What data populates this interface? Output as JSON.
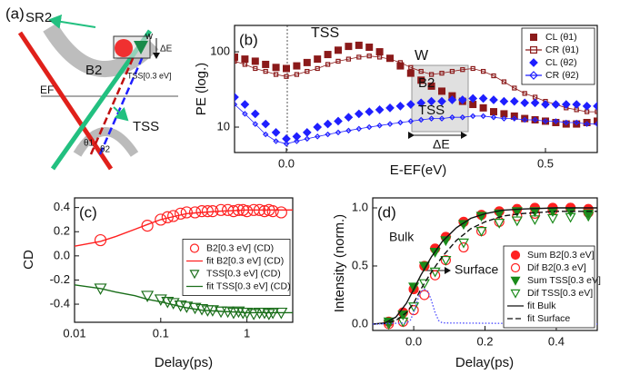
{
  "diagram": {
    "panel": "(a)",
    "labels": [
      "SR2",
      "w",
      "ΔE",
      "B2",
      "TSS[0.3 eV]",
      "EF",
      "TSS",
      "θ1",
      "θ2"
    ]
  },
  "chart_data": [
    {
      "type": "line",
      "panel": "(b)",
      "xlabel": "E-EF(eV)",
      "ylabel": "PE (log.)",
      "xlim": [
        -0.1,
        0.6
      ],
      "ylim": [
        4.6,
        224
      ],
      "ylog": true,
      "xticks": [
        {
          "value": 0,
          "label": "0.0"
        },
        {
          "value": 0.5,
          "label": "0.5"
        }
      ],
      "yticks": [
        10,
        100
      ],
      "legend": "top-right",
      "annotations": [
        "TSS",
        "W",
        "B2",
        "TSS",
        "ΔE"
      ],
      "x": [
        -0.1,
        -0.08,
        -0.06,
        -0.04,
        -0.02,
        0,
        0.02,
        0.04,
        0.06,
        0.08,
        0.1,
        0.12,
        0.14,
        0.16,
        0.18,
        0.2,
        0.22,
        0.24,
        0.26,
        0.28,
        0.3,
        0.32,
        0.34,
        0.36,
        0.38,
        0.4,
        0.42,
        0.44,
        0.46,
        0.48,
        0.5,
        0.52,
        0.54,
        0.56,
        0.58,
        0.6
      ],
      "series": [
        {
          "name": "CL (θ1)",
          "color": "#8b1a1a",
          "marker": "square",
          "filled": true,
          "line": false,
          "values": [
            85,
            80,
            75,
            68,
            62,
            60,
            65,
            72,
            80,
            92,
            105,
            118,
            122,
            115,
            100,
            82,
            65,
            52,
            42,
            35,
            30,
            26,
            22,
            20,
            18,
            16,
            15,
            14,
            13,
            12.5,
            12,
            11.5,
            11,
            11,
            11.5,
            12
          ]
        },
        {
          "name": "CR (θ1)",
          "color": "#8b1a1a",
          "marker": "square",
          "filled": false,
          "line": true,
          "values": [
            75,
            68,
            60,
            55,
            50,
            47,
            50,
            55,
            60,
            68,
            75,
            80,
            85,
            88,
            85,
            80,
            72,
            62,
            55,
            50,
            52,
            55,
            58,
            60,
            55,
            48,
            40,
            33,
            28,
            25,
            22,
            20,
            18,
            17,
            16,
            16
          ]
        },
        {
          "name": "CL (θ2)",
          "color": "#1f1fff",
          "marker": "diamond",
          "filled": true,
          "line": false,
          "values": [
            25,
            20,
            15,
            11,
            8.5,
            7,
            7.5,
            8.5,
            10,
            11,
            12,
            13.5,
            15,
            16,
            17,
            18,
            19,
            20,
            21,
            22,
            22,
            23,
            23,
            24,
            24,
            23,
            22,
            22,
            21,
            21,
            20,
            20,
            20,
            20,
            19,
            19
          ]
        },
        {
          "name": "CR (θ2)",
          "color": "#1f1fff",
          "marker": "diamond",
          "filled": false,
          "line": true,
          "values": [
            20,
            15,
            11,
            8,
            6.5,
            6,
            6.5,
            7,
            7.5,
            8,
            8.5,
            9,
            9.5,
            10,
            10.5,
            11,
            11.5,
            12,
            12.5,
            13,
            13,
            13.5,
            13.5,
            14,
            14,
            13.5,
            13,
            13,
            12.5,
            12.5,
            12,
            12,
            11.5,
            11.5,
            11,
            11
          ]
        }
      ]
    },
    {
      "type": "line",
      "panel": "(c)",
      "xlabel": "Delay(ps)",
      "ylabel": "CD",
      "xlim": [
        0.01,
        3.4
      ],
      "ylim": [
        -0.55,
        0.48
      ],
      "xlog": true,
      "xticks": [
        0.01,
        0.1,
        1
      ],
      "yticks": [
        -0.4,
        -0.2,
        {
          "value": 0,
          "label": "0.0"
        },
        0.2,
        0.4
      ],
      "legend": "center-right",
      "series": [
        {
          "name": "B2[0.3 eV] (CD)",
          "color": "#ff2020",
          "marker": "circle",
          "filled": false,
          "line": false,
          "x": [
            0.02,
            0.07,
            0.1,
            0.12,
            0.14,
            0.17,
            0.2,
            0.25,
            0.3,
            0.35,
            0.4,
            0.5,
            0.6,
            0.7,
            0.8,
            0.9,
            1,
            1.2,
            1.4,
            1.6,
            1.8,
            2,
            2.5
          ],
          "values": [
            0.13,
            0.25,
            0.3,
            0.32,
            0.33,
            0.35,
            0.36,
            0.36,
            0.37,
            0.37,
            0.37,
            0.38,
            0.38,
            0.37,
            0.38,
            0.38,
            0.37,
            0.38,
            0.38,
            0.37,
            0.38,
            0.37,
            0.36
          ]
        },
        {
          "name": "fit B2[0.3 eV] (CD)",
          "color": "#ff2020",
          "line": true,
          "x": [
            0.01,
            0.02,
            0.03,
            0.05,
            0.07,
            0.1,
            0.15,
            0.2,
            0.3,
            0.5,
            0.7,
            1,
            1.5,
            2,
            3,
            3.4
          ],
          "values": [
            0.08,
            0.12,
            0.16,
            0.22,
            0.26,
            0.3,
            0.33,
            0.35,
            0.36,
            0.37,
            0.375,
            0.38,
            0.38,
            0.38,
            0.38,
            0.38
          ]
        },
        {
          "name": "TSS[0.3 eV] (CD)",
          "color": "#1a6e1a",
          "marker": "triangle-down",
          "filled": false,
          "line": false,
          "x": [
            0.02,
            0.07,
            0.1,
            0.12,
            0.14,
            0.17,
            0.2,
            0.25,
            0.3,
            0.35,
            0.4,
            0.5,
            0.6,
            0.7,
            0.8,
            0.9,
            1,
            1.2,
            1.4,
            1.6,
            1.8,
            2,
            2.5
          ],
          "values": [
            -0.27,
            -0.33,
            -0.36,
            -0.38,
            -0.39,
            -0.41,
            -0.42,
            -0.43,
            -0.44,
            -0.45,
            -0.45,
            -0.46,
            -0.46,
            -0.47,
            -0.46,
            -0.47,
            -0.47,
            -0.48,
            -0.47,
            -0.47,
            -0.48,
            -0.47,
            -0.47
          ]
        },
        {
          "name": "fit TSS[0.3 eV] (CD)",
          "color": "#1a6e1a",
          "line": true,
          "x": [
            0.01,
            0.02,
            0.03,
            0.05,
            0.07,
            0.1,
            0.15,
            0.2,
            0.3,
            0.5,
            0.7,
            1,
            1.5,
            2,
            3,
            3.4
          ],
          "values": [
            -0.24,
            -0.27,
            -0.3,
            -0.33,
            -0.36,
            -0.38,
            -0.41,
            -0.43,
            -0.45,
            -0.46,
            -0.465,
            -0.47,
            -0.47,
            -0.47,
            -0.47,
            -0.47
          ]
        }
      ]
    },
    {
      "type": "line",
      "panel": "(d)",
      "xlabel": "Delay(ps)",
      "ylabel": "Intensity (norm.)",
      "xlim": [
        -0.115,
        0.515
      ],
      "ylim": [
        -0.055,
        1.086
      ],
      "xticks": [
        {
          "value": 0,
          "label": "0.0"
        },
        0.2,
        0.4
      ],
      "yticks": [
        {
          "value": 0,
          "label": "0.0"
        },
        0.5,
        {
          "value": 1,
          "label": "1.0"
        }
      ],
      "legend": "bottom-right",
      "annotations": [
        "Bulk",
        "Surface"
      ],
      "series": [
        {
          "name": "Sum B2[0.3 eV]",
          "color": "#ff2020",
          "marker": "circle",
          "filled": true,
          "line": false,
          "x": [
            -0.07,
            -0.03,
            0,
            0.03,
            0.06,
            0.09,
            0.14,
            0.19,
            0.24,
            0.29,
            0.34,
            0.39,
            0.44,
            0.49
          ],
          "values": [
            0.02,
            0.1,
            0.3,
            0.5,
            0.65,
            0.75,
            0.88,
            0.94,
            0.97,
            0.99,
            1,
            1,
            1,
            0.99
          ]
        },
        {
          "name": "Dif B2[0.3 eV]",
          "color": "#ff2020",
          "marker": "circle",
          "filled": false,
          "line": false,
          "x": [
            -0.07,
            -0.03,
            0,
            0.03,
            0.06,
            0.09,
            0.14,
            0.19,
            0.24,
            0.29,
            0.34,
            0.39,
            0.44,
            0.49
          ],
          "values": [
            0,
            0.02,
            0.12,
            0.25,
            0.42,
            0.55,
            0.66,
            0.8,
            0.88,
            0.93,
            0.95,
            0.98,
            1,
            0.96
          ]
        },
        {
          "name": "Sum TSS[0.3 eV]",
          "color": "#1a8a1a",
          "marker": "triangle-down",
          "filled": true,
          "line": false,
          "x": [
            -0.07,
            -0.03,
            0,
            0.03,
            0.06,
            0.09,
            0.14,
            0.19,
            0.24,
            0.29,
            0.34,
            0.39,
            0.44,
            0.49
          ],
          "values": [
            0.02,
            0.08,
            0.32,
            0.5,
            0.62,
            0.72,
            0.86,
            0.93,
            0.95,
            0.97,
            0.97,
            0.97,
            0.97,
            0.95
          ]
        },
        {
          "name": "Dif TSS[0.3 eV]",
          "color": "#1a8a1a",
          "marker": "triangle-down",
          "filled": false,
          "line": false,
          "x": [
            -0.07,
            -0.03,
            0,
            0.03,
            0.06,
            0.09,
            0.14,
            0.19,
            0.24,
            0.29,
            0.34,
            0.39,
            0.44,
            0.49
          ],
          "values": [
            0,
            0.02,
            0.15,
            0.35,
            0.45,
            0.55,
            0.7,
            0.8,
            0.87,
            0.89,
            0.9,
            0.91,
            0.92,
            0.93
          ]
        },
        {
          "name": "fit Bulk",
          "color": "#111111",
          "line": true,
          "dash": "solid",
          "x": [
            -0.115,
            -0.08,
            -0.05,
            -0.02,
            0,
            0.02,
            0.05,
            0.08,
            0.12,
            0.16,
            0.2,
            0.25,
            0.3,
            0.4,
            0.515
          ],
          "values": [
            0,
            0.01,
            0.06,
            0.18,
            0.3,
            0.42,
            0.58,
            0.71,
            0.83,
            0.91,
            0.95,
            0.98,
            0.99,
            1,
            1
          ]
        },
        {
          "name": "fit Surface",
          "color": "#111111",
          "line": true,
          "dash": "dashed",
          "x": [
            -0.115,
            -0.08,
            -0.05,
            -0.02,
            0,
            0.02,
            0.05,
            0.08,
            0.12,
            0.16,
            0.2,
            0.25,
            0.3,
            0.4,
            0.515
          ],
          "values": [
            0,
            0.005,
            0.03,
            0.1,
            0.18,
            0.3,
            0.45,
            0.58,
            0.72,
            0.82,
            0.88,
            0.93,
            0.95,
            0.97,
            0.97
          ]
        },
        {
          "color": "#5555ff",
          "line": true,
          "dash": "dotted",
          "x": [
            -0.115,
            -0.02,
            -0.01,
            0,
            0.01,
            0.02,
            0.03,
            0.04,
            0.05,
            0.06,
            0.07,
            0.08,
            0.515
          ],
          "values": [
            0,
            0.01,
            0.03,
            0.1,
            0.2,
            0.28,
            0.3,
            0.28,
            0.2,
            0.1,
            0.03,
            0.01,
            0
          ]
        }
      ]
    }
  ]
}
